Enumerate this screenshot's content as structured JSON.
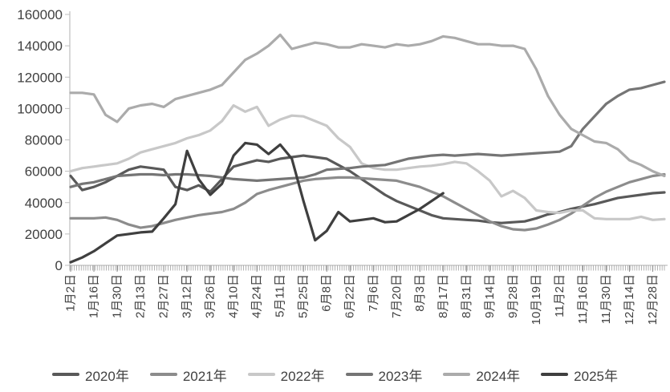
{
  "chart_data": {
    "type": "line",
    "title": "",
    "xlabel": "",
    "ylabel": "",
    "ylim": [
      0,
      160000
    ],
    "y_ticks": [
      0,
      20000,
      40000,
      60000,
      80000,
      100000,
      120000,
      140000,
      160000
    ],
    "grid": false,
    "legend_position": "bottom",
    "x_tick_labels": [
      "1月2日",
      "1月16日",
      "1月30日",
      "2月13日",
      "2月27日",
      "3月12日",
      "3月26日",
      "4月10日",
      "4月24日",
      "5月11日",
      "5月25日",
      "6月8日",
      "6月22日",
      "7月6日",
      "7月20日",
      "8月3日",
      "8月17日",
      "8月31日",
      "9月14日",
      "9月28日",
      "10月19日",
      "11月2日",
      "11月16日",
      "11月30日",
      "12月14日",
      "12月28日"
    ],
    "points_per_series": 52,
    "tick_every_n_points": 2,
    "series": [
      {
        "name": "2020年",
        "color": "#595959",
        "values": [
          57000,
          48000,
          50000,
          53000,
          57000,
          61000,
          63000,
          62000,
          61000,
          50000,
          48000,
          51000,
          47000,
          55000,
          63000,
          65000,
          67000,
          66000,
          68000,
          69000,
          70000,
          69000,
          68000,
          64000,
          60000,
          55000,
          50000,
          45000,
          41000,
          38000,
          35000,
          32000,
          30000,
          29500,
          29000,
          28500,
          27500,
          27000,
          27500,
          28000,
          30000,
          32500,
          34000,
          36000,
          37500,
          39000,
          41000,
          43000,
          44000,
          45000,
          46000,
          46500
        ]
      },
      {
        "name": "2021年",
        "color": "#8c8c8c",
        "values": [
          30000,
          30000,
          30000,
          30500,
          29000,
          26000,
          24000,
          25000,
          27000,
          29000,
          30500,
          32000,
          33000,
          34000,
          36000,
          40000,
          45500,
          48000,
          50000,
          52000,
          54000,
          55000,
          55500,
          56000,
          56000,
          55500,
          55000,
          54500,
          54000,
          52000,
          50000,
          47000,
          44000,
          40000,
          36000,
          32000,
          28000,
          25000,
          23000,
          22500,
          23500,
          26000,
          29000,
          33000,
          38000,
          43000,
          47000,
          50000,
          53000,
          55000,
          57000,
          58000
        ]
      },
      {
        "name": "2022年",
        "color": "#c8c8c8",
        "values": [
          60000,
          62000,
          63000,
          64000,
          65000,
          68000,
          72000,
          74000,
          76000,
          78000,
          81000,
          83000,
          86000,
          92000,
          102000,
          98000,
          101000,
          89000,
          93000,
          95500,
          95000,
          92000,
          89000,
          81000,
          75500,
          65000,
          62000,
          61000,
          61000,
          62000,
          63000,
          63500,
          64500,
          66000,
          65000,
          60000,
          54000,
          44000,
          47500,
          43000,
          35000,
          34000,
          33500,
          35000,
          35000,
          30000,
          29500,
          29500,
          29500,
          31000,
          29000,
          29500
        ]
      },
      {
        "name": "2023年",
        "color": "#757575",
        "values": [
          50000,
          52000,
          53000,
          55000,
          57000,
          57500,
          58000,
          58000,
          57500,
          58000,
          58000,
          57500,
          57000,
          56000,
          55000,
          54500,
          54000,
          54500,
          55000,
          55500,
          56000,
          58000,
          61000,
          61500,
          62000,
          63000,
          63500,
          64000,
          66000,
          68000,
          69000,
          70000,
          70500,
          70000,
          70500,
          71000,
          70500,
          70000,
          70500,
          71000,
          71500,
          72000,
          72500,
          76000,
          87000,
          95000,
          103000,
          108000,
          112000,
          113000,
          115000,
          117000
        ]
      },
      {
        "name": "2024年",
        "color": "#ababab",
        "values": [
          110000,
          110000,
          109000,
          96000,
          91500,
          100000,
          102000,
          103000,
          101000,
          106000,
          108000,
          110000,
          112000,
          115000,
          123000,
          131000,
          135000,
          140000,
          147000,
          138000,
          140000,
          142000,
          141000,
          139000,
          139000,
          141000,
          140000,
          139000,
          141000,
          140000,
          141000,
          143000,
          146000,
          145000,
          143000,
          141000,
          141000,
          140000,
          140000,
          138000,
          125000,
          108000,
          96000,
          87000,
          83000,
          79000,
          78000,
          74000,
          67000,
          64000,
          60000,
          57000
        ]
      },
      {
        "name": "2025年",
        "color": "#3f3f3f",
        "values": [
          2000,
          5000,
          9000,
          14000,
          19000,
          20000,
          21000,
          21500,
          30000,
          39000,
          73000,
          55000,
          45000,
          52000,
          70000,
          78000,
          77000,
          71000,
          77000,
          68000,
          41000,
          16000,
          22000,
          34000,
          28000,
          29000,
          30000,
          27500,
          28000,
          32000,
          36000,
          41000,
          46000,
          null,
          null,
          null,
          null,
          null,
          null,
          null,
          null,
          null,
          null,
          null,
          null,
          null,
          null,
          null,
          null,
          null,
          null,
          null
        ]
      }
    ]
  }
}
